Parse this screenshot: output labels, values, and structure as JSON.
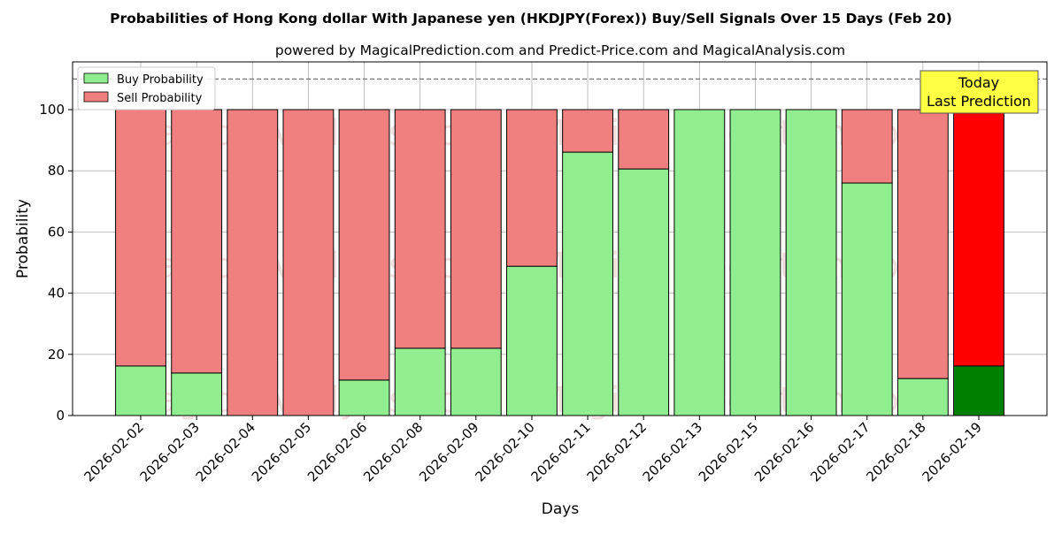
{
  "chart_data": {
    "type": "bar",
    "stacked": true,
    "title": "Probabilities of Hong Kong dollar With Japanese yen (HKDJPY(Forex)) Buy/Sell Signals Over 15 Days (Feb 20)",
    "subtitle": "powered by MagicalPrediction.com and Predict-Price.com and MagicalAnalysis.com",
    "xlabel": "Days",
    "ylabel": "Probability",
    "ylim": [
      0,
      115.6
    ],
    "yticks": [
      0,
      20,
      40,
      60,
      80,
      100
    ],
    "grid": true,
    "legend_placement": "top-left",
    "reference_line": 110,
    "categories": [
      "2026-02-02",
      "2026-02-03",
      "2026-02-04",
      "2026-02-05",
      "2026-02-06",
      "2026-02-08",
      "2026-02-09",
      "2026-02-10",
      "2026-02-11",
      "2026-02-12",
      "2026-02-13",
      "2026-02-15",
      "2026-02-16",
      "2026-02-17",
      "2026-02-18",
      "2026-02-19"
    ],
    "series": [
      {
        "name": "Buy Probability",
        "color": "#90ee90",
        "values": [
          16.2,
          13.9,
          0,
          0,
          11.6,
          22.0,
          22.0,
          48.8,
          86.1,
          80.6,
          100,
          100,
          100,
          76.0,
          12.1,
          16.2
        ]
      },
      {
        "name": "Sell Probability",
        "color": "#f08080",
        "values": [
          83.8,
          86.1,
          100,
          100,
          88.4,
          78.0,
          78.0,
          51.2,
          13.9,
          19.4,
          0,
          0,
          0,
          24.0,
          87.9,
          83.8
        ]
      }
    ],
    "highlight": {
      "index": 15,
      "buy_color": "#008000",
      "sell_color": "#ff0000"
    },
    "annotation": {
      "line1": "Today",
      "line2": "Last Prediction"
    },
    "watermarks": [
      "MagicalAnalysis.com",
      "MagicalPrediction.com"
    ]
  }
}
